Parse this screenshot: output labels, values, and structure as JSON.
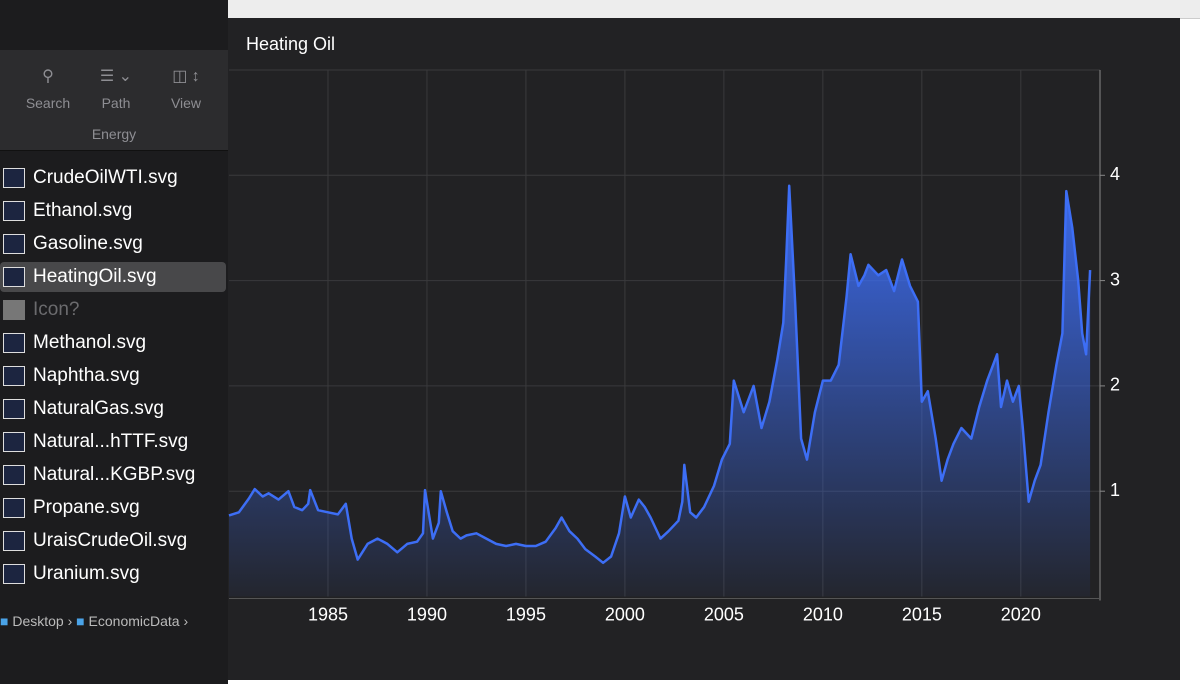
{
  "finder": {
    "toolbar": [
      "Search",
      "Path",
      "View"
    ],
    "folder": "Energy",
    "files": [
      "CrudeOilWTI.svg",
      "Ethanol.svg",
      "Gasoline.svg",
      "HeatingOil.svg",
      "Icon?",
      "Methanol.svg",
      "Naphtha.svg",
      "NaturalGas.svg",
      "Natural...hTTF.svg",
      "Natural...KGBP.svg",
      "Propane.svg",
      "UraisCrudeOil.svg",
      "Uranium.svg"
    ],
    "selected": 3,
    "breadcrumb": [
      "Desktop",
      "EconomicData"
    ]
  },
  "chart_data": {
    "type": "area",
    "title": "Heating Oil",
    "color": "#3d6ef5",
    "x": [
      1980.0,
      1980.5,
      1981.0,
      1981.3,
      1981.7,
      1982.0,
      1982.5,
      1983.0,
      1983.3,
      1983.7,
      1984.0,
      1984.1,
      1984.5,
      1985.0,
      1985.5,
      1985.9,
      1986.2,
      1986.5,
      1987.0,
      1987.5,
      1988.0,
      1988.5,
      1989.0,
      1989.5,
      1989.8,
      1989.9,
      1990.3,
      1990.6,
      1990.7,
      1991.0,
      1991.3,
      1991.7,
      1992.0,
      1992.5,
      1993.0,
      1993.5,
      1994.0,
      1994.5,
      1995.0,
      1995.5,
      1996.0,
      1996.5,
      1996.8,
      1997.2,
      1997.6,
      1998.0,
      1998.5,
      1998.9,
      1999.3,
      1999.7,
      2000.0,
      2000.3,
      2000.7,
      2001.0,
      2001.3,
      2001.8,
      2002.2,
      2002.7,
      2002.9,
      2003.0,
      2003.3,
      2003.6,
      2004.0,
      2004.5,
      2004.9,
      2005.3,
      2005.5,
      2006.0,
      2006.5,
      2006.9,
      2007.3,
      2007.7,
      2008.0,
      2008.15,
      2008.3,
      2008.6,
      2008.9,
      2009.2,
      2009.6,
      2010.0,
      2010.4,
      2010.8,
      2011.2,
      2011.4,
      2011.8,
      2012.1,
      2012.3,
      2012.8,
      2013.2,
      2013.6,
      2014.0,
      2014.4,
      2014.8,
      2015.0,
      2015.3,
      2015.7,
      2016.0,
      2016.3,
      2016.6,
      2017.0,
      2017.5,
      2017.9,
      2018.3,
      2018.8,
      2019.0,
      2019.3,
      2019.6,
      2019.9,
      2020.1,
      2020.4,
      2020.7,
      2021.0,
      2021.4,
      2021.8,
      2022.1,
      2022.2,
      2022.3,
      2022.6,
      2022.9,
      2023.1,
      2023.3,
      2023.5
    ],
    "values": [
      0.77,
      0.8,
      0.93,
      1.02,
      0.95,
      0.98,
      0.92,
      1.0,
      0.85,
      0.82,
      0.88,
      1.01,
      0.82,
      0.8,
      0.78,
      0.88,
      0.55,
      0.35,
      0.5,
      0.55,
      0.5,
      0.42,
      0.5,
      0.52,
      0.6,
      1.01,
      0.55,
      0.7,
      1.0,
      0.8,
      0.62,
      0.55,
      0.58,
      0.6,
      0.55,
      0.5,
      0.48,
      0.5,
      0.48,
      0.48,
      0.52,
      0.65,
      0.75,
      0.62,
      0.55,
      0.45,
      0.38,
      0.32,
      0.38,
      0.6,
      0.95,
      0.75,
      0.92,
      0.85,
      0.75,
      0.55,
      0.62,
      0.72,
      0.9,
      1.25,
      0.8,
      0.75,
      0.85,
      1.05,
      1.3,
      1.45,
      2.05,
      1.75,
      2.0,
      1.6,
      1.85,
      2.25,
      2.6,
      3.2,
      3.9,
      2.8,
      1.5,
      1.3,
      1.75,
      2.05,
      2.05,
      2.2,
      2.85,
      3.25,
      2.95,
      3.05,
      3.15,
      3.05,
      3.1,
      2.9,
      3.2,
      2.95,
      2.8,
      1.85,
      1.95,
      1.5,
      1.1,
      1.3,
      1.45,
      1.6,
      1.5,
      1.8,
      2.05,
      2.3,
      1.8,
      2.05,
      1.85,
      2.0,
      1.6,
      0.9,
      1.1,
      1.25,
      1.75,
      2.2,
      2.5,
      3.2,
      3.85,
      3.5,
      3.0,
      2.5,
      2.3,
      3.1
    ],
    "xlim": [
      1980,
      2024
    ],
    "ylim": [
      0,
      5
    ],
    "xticks": [
      1985,
      1990,
      1995,
      2000,
      2005,
      2010,
      2015,
      2020
    ],
    "yticks": [
      1,
      2,
      3,
      4
    ],
    "grid": true
  }
}
